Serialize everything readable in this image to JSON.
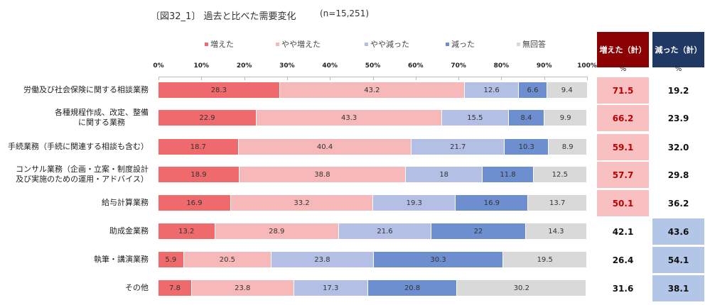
{
  "chart_data": {
    "type": "bar",
    "orientation": "horizontal-stacked-100",
    "title": "〔図32_1〕 過去と比べた需要変化",
    "n_label": "(n=15,251)",
    "legend_position": "top",
    "x_ticks": [
      "0%",
      "10%",
      "20%",
      "30%",
      "40%",
      "50%",
      "60%",
      "70%",
      "80%",
      "90%",
      "100%"
    ],
    "xlim": [
      0,
      100
    ],
    "categories": [
      "労働及び社会保険に関する相談業務",
      "各種規程作成、改定、整備\nに関する業務",
      "手続業務（手続に関連する相談も含む）",
      "コンサル業務（企画・立案・制度設計\n及び実施のための運用・アドバイス）",
      "給与計算業務",
      "助成金業務",
      "執筆・講演業務",
      "その他"
    ],
    "series": [
      {
        "name": "増えた",
        "color": "#ef6a6c",
        "values": [
          28.3,
          22.9,
          18.7,
          18.9,
          16.9,
          13.2,
          5.9,
          7.8
        ]
      },
      {
        "name": "やや増えた",
        "color": "#f7b8b9",
        "values": [
          43.2,
          43.3,
          40.4,
          38.8,
          33.2,
          28.9,
          20.5,
          23.8
        ]
      },
      {
        "name": "やや減った",
        "color": "#b3bfe4",
        "values": [
          12.6,
          15.5,
          21.7,
          18.0,
          19.3,
          21.6,
          23.8,
          17.3
        ]
      },
      {
        "name": "減った",
        "color": "#6d8fd0",
        "values": [
          6.6,
          8.4,
          10.3,
          11.8,
          16.9,
          22.0,
          30.3,
          20.8
        ]
      },
      {
        "name": "無回答",
        "color": "#d9d9d9",
        "values": [
          9.4,
          9.9,
          8.9,
          12.5,
          13.7,
          14.3,
          19.5,
          30.2
        ]
      }
    ],
    "summary": {
      "increase": {
        "label": "増えた（計）",
        "unit": "%",
        "color": "#8b0000",
        "highlight": "#f8c0c0",
        "values": [
          "71.5",
          "66.2",
          "59.1",
          "57.7",
          "50.1",
          "42.1",
          "26.4",
          "31.6"
        ],
        "highlighted": [
          true,
          true,
          true,
          true,
          true,
          false,
          false,
          false
        ]
      },
      "decrease": {
        "label": "減った（計）",
        "unit": "%",
        "color": "#1f3864",
        "highlight": "#b4c6e7",
        "values": [
          "19.2",
          "23.9",
          "32.0",
          "29.8",
          "36.2",
          "43.6",
          "54.1",
          "38.1"
        ],
        "highlighted": [
          false,
          false,
          false,
          false,
          false,
          true,
          true,
          true
        ]
      }
    }
  }
}
